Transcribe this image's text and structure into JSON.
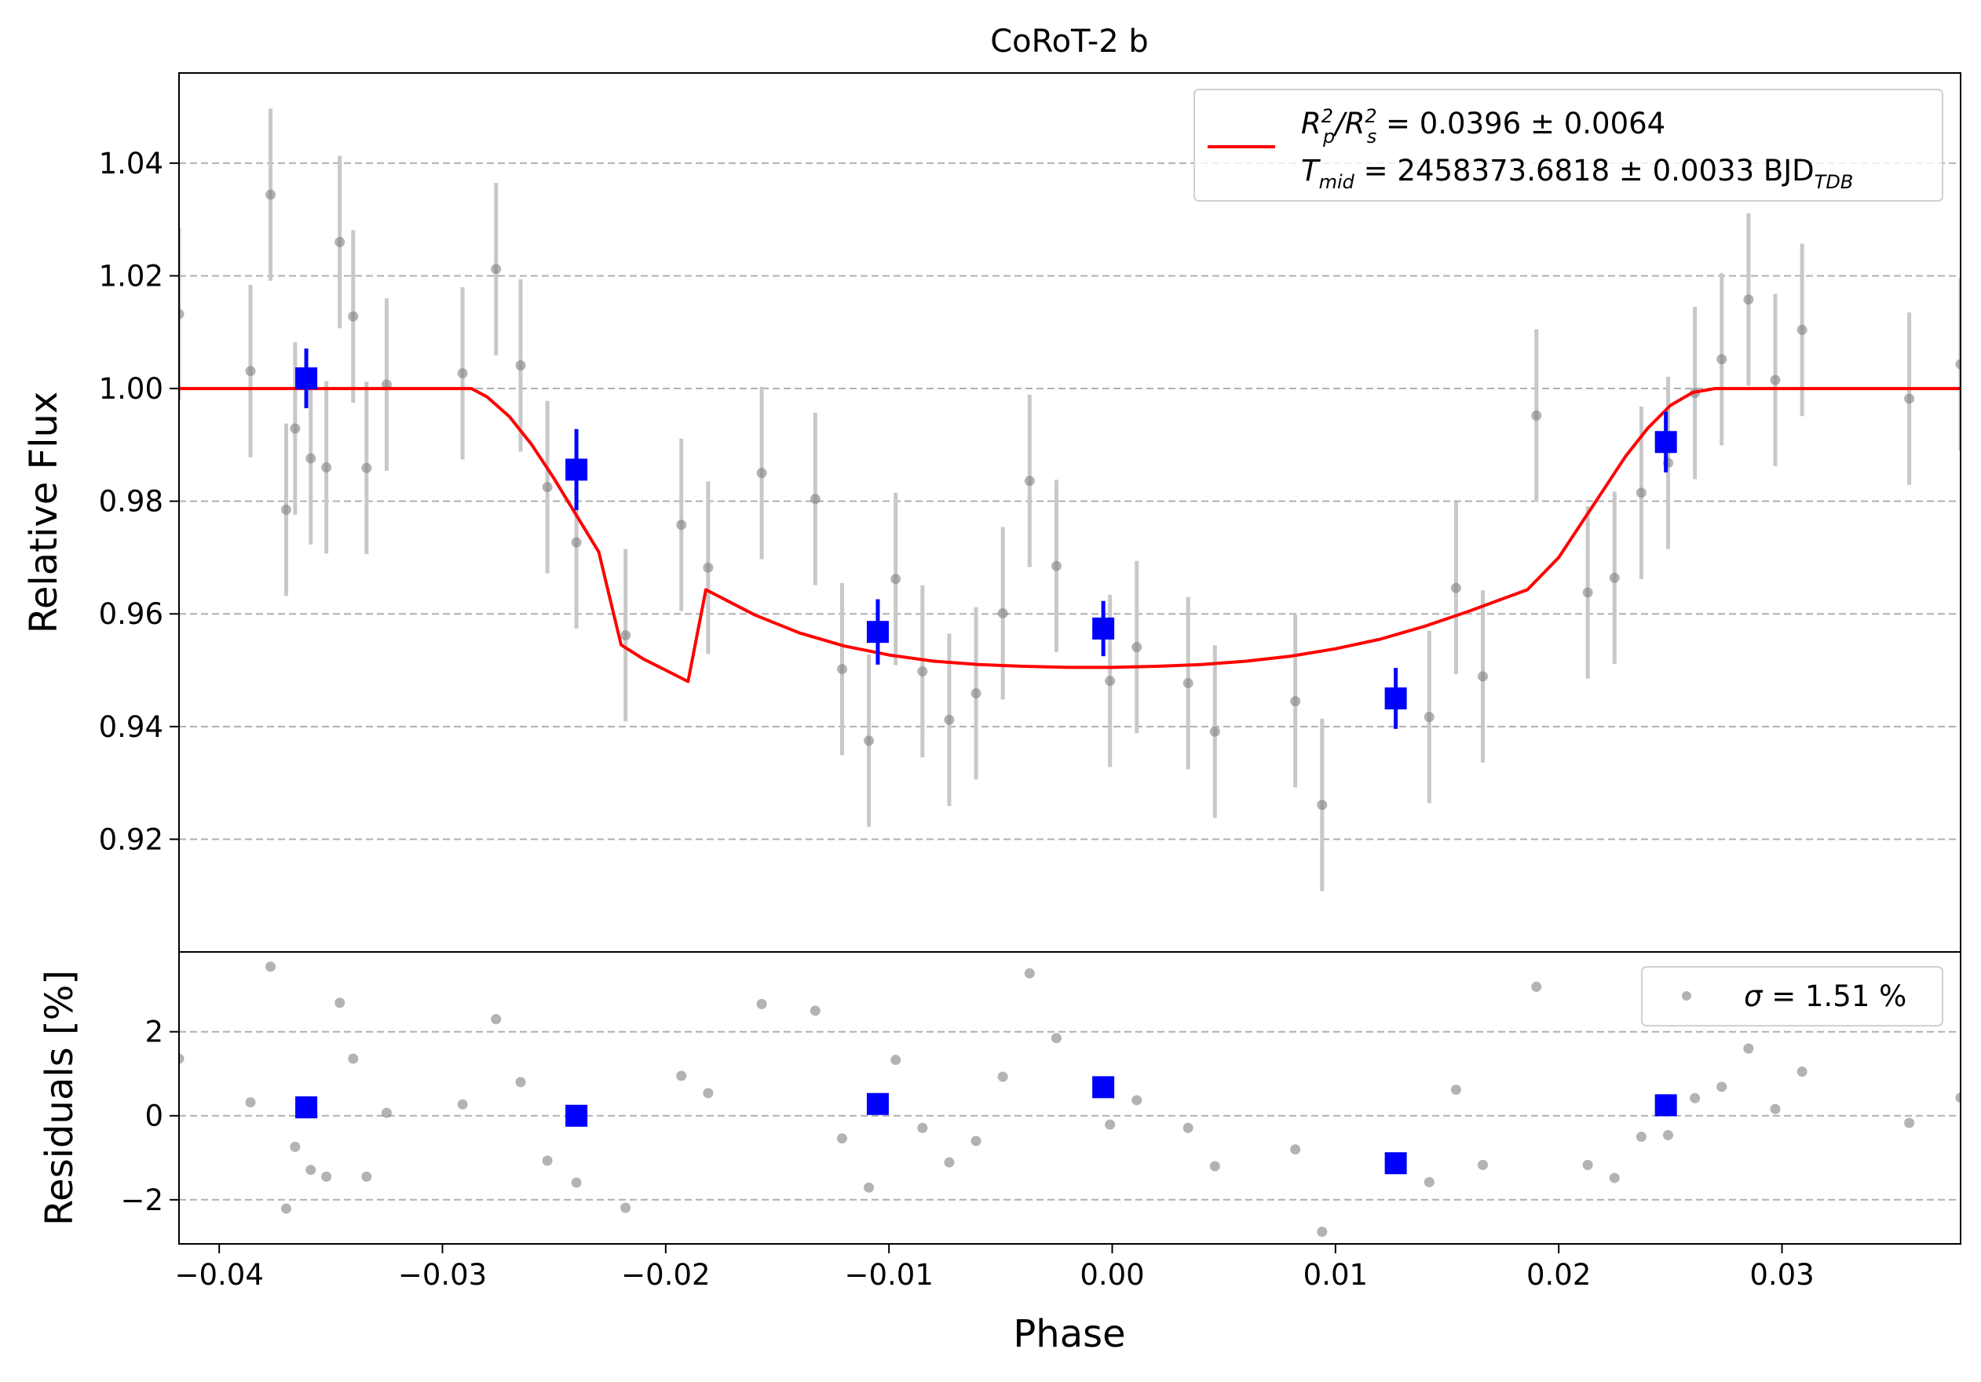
{
  "chart_data": [
    {
      "type": "scatter",
      "title": "CoRoT-2 b",
      "xlabel": "",
      "ylabel": "Relative Flux",
      "xlim": [
        -0.0418,
        0.038
      ],
      "ylim": [
        0.9,
        1.056
      ],
      "x_ticks": [
        -0.04,
        -0.03,
        -0.02,
        -0.01,
        0.0,
        0.01,
        0.02,
        0.03
      ],
      "y_ticks": [
        0.92,
        0.94,
        0.96,
        0.98,
        1.0,
        1.02,
        1.04
      ],
      "y_tick_labels": [
        "0.92",
        "0.94",
        "0.96",
        "0.98",
        "1.00",
        "1.02",
        "1.04"
      ],
      "grid": "horizontal dashed",
      "legend_position": "top-right",
      "colors": {
        "data": "#808080",
        "errorbar": "#c8c8c8",
        "binned": "#0000ff",
        "model": "#ff0000"
      },
      "legend": {
        "model_line1_a": "R",
        "model_line1_sub1": "p",
        "model_line1_sup1": "2",
        "model_line1_b": "/R",
        "model_line1_sub2": "s",
        "model_line1_sup2": "2",
        "model_line1_c": " = 0.0396 ± 0.0064",
        "model_line2_a": "T",
        "model_line2_sub": "mid",
        "model_line2_b": " = 2458373.6818 ± 0.0033 BJD",
        "model_line2_sub2": "TDB"
      },
      "series": [
        {
          "kind": "data",
          "error": 0.0153,
          "points": [
            [
              -0.0418,
              1.0132
            ],
            [
              -0.0386,
              1.0031
            ],
            [
              -0.0377,
              1.0344
            ],
            [
              -0.037,
              0.9785
            ],
            [
              -0.0366,
              0.9929
            ],
            [
              -0.0359,
              0.9876
            ],
            [
              -0.0352,
              0.986
            ],
            [
              -0.0346,
              1.026
            ],
            [
              -0.034,
              1.0128
            ],
            [
              -0.0334,
              0.9859
            ],
            [
              -0.0325,
              1.0007
            ],
            [
              -0.0291,
              1.0027
            ],
            [
              -0.0276,
              1.0212
            ],
            [
              -0.0265,
              1.0041
            ],
            [
              -0.0253,
              0.9825
            ],
            [
              -0.024,
              0.9727
            ],
            [
              -0.0218,
              0.9562
            ],
            [
              -0.0193,
              0.9758
            ],
            [
              -0.0181,
              0.9682
            ],
            [
              -0.0157,
              0.985
            ],
            [
              -0.0133,
              0.9804
            ],
            [
              -0.0121,
              0.9502
            ],
            [
              -0.0109,
              0.9375
            ],
            [
              -0.0097,
              0.9662
            ],
            [
              -0.0085,
              0.9498
            ],
            [
              -0.0073,
              0.9412
            ],
            [
              -0.0061,
              0.9459
            ],
            [
              -0.0049,
              0.9601
            ],
            [
              -0.0037,
              0.9836
            ],
            [
              -0.0025,
              0.9685
            ],
            [
              -0.0001,
              0.9481
            ],
            [
              0.0011,
              0.9541
            ],
            [
              0.0034,
              0.9477
            ],
            [
              0.0046,
              0.9391
            ],
            [
              0.0082,
              0.9445
            ],
            [
              0.0094,
              0.9261
            ],
            [
              0.0142,
              0.9417
            ],
            [
              0.0154,
              0.9646
            ],
            [
              0.0166,
              0.9489
            ],
            [
              0.019,
              0.9952
            ],
            [
              0.0213,
              0.9638
            ],
            [
              0.0225,
              0.9664
            ],
            [
              0.0237,
              0.9815
            ],
            [
              0.0249,
              0.9868
            ],
            [
              0.0261,
              0.9992
            ],
            [
              0.0273,
              1.0052
            ],
            [
              0.0285,
              1.0158
            ],
            [
              0.0297,
              1.0015
            ],
            [
              0.0309,
              1.0104
            ],
            [
              0.0357,
              0.9982
            ],
            [
              0.038,
              1.0043
            ]
          ]
        },
        {
          "kind": "binned",
          "points": [
            [
              -0.0361,
              1.0018,
              0.0053
            ],
            [
              -0.024,
              0.9856,
              0.0072
            ],
            [
              -0.0105,
              0.9568,
              0.0058
            ],
            [
              -0.0004,
              0.9574,
              0.0049
            ],
            [
              0.0127,
              0.945,
              0.0054
            ],
            [
              0.0248,
              0.9905,
              0.0054
            ]
          ]
        },
        {
          "kind": "model",
          "points": [
            [
              -0.0418,
              1.0
            ],
            [
              -0.029,
              1.0
            ],
            [
              -0.0287,
              1.0
            ],
            [
              -0.028,
              0.9985
            ],
            [
              -0.027,
              0.995
            ],
            [
              -0.026,
              0.99
            ],
            [
              -0.025,
              0.984
            ],
            [
              -0.024,
              0.9775
            ],
            [
              -0.023,
              0.971
            ],
            [
              -0.022,
              0.9545
            ],
            [
              -0.021,
              0.952
            ],
            [
              -0.02,
              0.95
            ],
            [
              -0.019,
              0.948
            ],
            [
              -0.0182,
              0.9643
            ],
            [
              -0.016,
              0.9598
            ],
            [
              -0.014,
              0.9566
            ],
            [
              -0.012,
              0.9543
            ],
            [
              -0.01,
              0.9527
            ],
            [
              -0.008,
              0.9516
            ],
            [
              -0.006,
              0.951
            ],
            [
              -0.004,
              0.9507
            ],
            [
              -0.002,
              0.9505
            ],
            [
              0.0,
              0.9505
            ],
            [
              0.002,
              0.9507
            ],
            [
              0.004,
              0.951
            ],
            [
              0.006,
              0.9516
            ],
            [
              0.008,
              0.9525
            ],
            [
              0.01,
              0.9538
            ],
            [
              0.012,
              0.9555
            ],
            [
              0.014,
              0.9578
            ],
            [
              0.016,
              0.9605
            ],
            [
              0.0186,
              0.9643
            ],
            [
              0.02,
              0.97
            ],
            [
              0.021,
              0.976
            ],
            [
              0.022,
              0.982
            ],
            [
              0.023,
              0.988
            ],
            [
              0.024,
              0.993
            ],
            [
              0.025,
              0.997
            ],
            [
              0.026,
              0.9993
            ],
            [
              0.027,
              1.0
            ],
            [
              0.0285,
              1.0
            ],
            [
              0.038,
              1.0
            ]
          ]
        }
      ]
    },
    {
      "type": "scatter",
      "title": "",
      "xlabel": "Phase",
      "ylabel": "Residuals [%]",
      "xlim": [
        -0.0418,
        0.038
      ],
      "ylim": [
        -3.05,
        3.9
      ],
      "x_ticks": [
        -0.04,
        -0.03,
        -0.02,
        -0.01,
        0.0,
        0.01,
        0.02,
        0.03
      ],
      "x_tick_labels": [
        "−0.04",
        "−0.03",
        "−0.02",
        "−0.01",
        "0.00",
        "0.01",
        "0.02",
        "0.03"
      ],
      "y_ticks": [
        -2,
        0,
        2
      ],
      "y_tick_labels": [
        "−2",
        "0",
        "2"
      ],
      "grid": "horizontal dashed",
      "legend_position": "top-right",
      "legend": {
        "sigma_symbol": "σ",
        "sigma_text": " = 1.51 %"
      },
      "series": [
        {
          "kind": "residuals",
          "points": [
            [
              -0.0418,
              1.36
            ],
            [
              -0.0386,
              0.32
            ],
            [
              -0.0377,
              3.55
            ],
            [
              -0.037,
              -2.21
            ],
            [
              -0.0366,
              -0.74
            ],
            [
              -0.0359,
              -1.29
            ],
            [
              -0.0352,
              -1.45
            ],
            [
              -0.0346,
              2.69
            ],
            [
              -0.034,
              1.36
            ],
            [
              -0.0334,
              -1.45
            ],
            [
              -0.0325,
              0.07
            ],
            [
              -0.0291,
              0.27
            ],
            [
              -0.0276,
              2.3
            ],
            [
              -0.0265,
              0.8
            ],
            [
              -0.0253,
              -1.07
            ],
            [
              -0.024,
              -1.59
            ],
            [
              -0.0218,
              -2.19
            ],
            [
              -0.0193,
              0.95
            ],
            [
              -0.0181,
              0.54
            ],
            [
              -0.0157,
              2.66
            ],
            [
              -0.0133,
              2.5
            ],
            [
              -0.0121,
              -0.54
            ],
            [
              -0.0109,
              -1.71
            ],
            [
              -0.0097,
              1.33
            ],
            [
              -0.0085,
              -0.29
            ],
            [
              -0.0073,
              -1.11
            ],
            [
              -0.0061,
              -0.6
            ],
            [
              -0.0049,
              0.93
            ],
            [
              -0.0037,
              3.39
            ],
            [
              -0.0025,
              1.85
            ],
            [
              -0.0001,
              -0.21
            ],
            [
              0.0011,
              0.37
            ],
            [
              0.0034,
              -0.29
            ],
            [
              0.0046,
              -1.2
            ],
            [
              0.0082,
              -0.8
            ],
            [
              0.0094,
              -2.76
            ],
            [
              0.0142,
              -1.58
            ],
            [
              0.0154,
              0.62
            ],
            [
              0.0166,
              -1.17
            ],
            [
              0.019,
              3.07
            ],
            [
              0.0213,
              -1.17
            ],
            [
              0.0225,
              -1.48
            ],
            [
              0.0237,
              -0.5
            ],
            [
              0.0249,
              -0.46
            ],
            [
              0.0261,
              0.42
            ],
            [
              0.0273,
              0.69
            ],
            [
              0.0285,
              1.6
            ],
            [
              0.0297,
              0.16
            ],
            [
              0.0309,
              1.05
            ],
            [
              0.0357,
              -0.17
            ],
            [
              0.038,
              0.43
            ]
          ]
        },
        {
          "kind": "binned",
          "points": [
            [
              -0.0361,
              0.2
            ],
            [
              -0.024,
              0.0
            ],
            [
              -0.0105,
              0.28
            ],
            [
              -0.0004,
              0.68
            ],
            [
              0.0127,
              -1.13
            ],
            [
              0.0248,
              0.25
            ]
          ]
        }
      ]
    }
  ]
}
